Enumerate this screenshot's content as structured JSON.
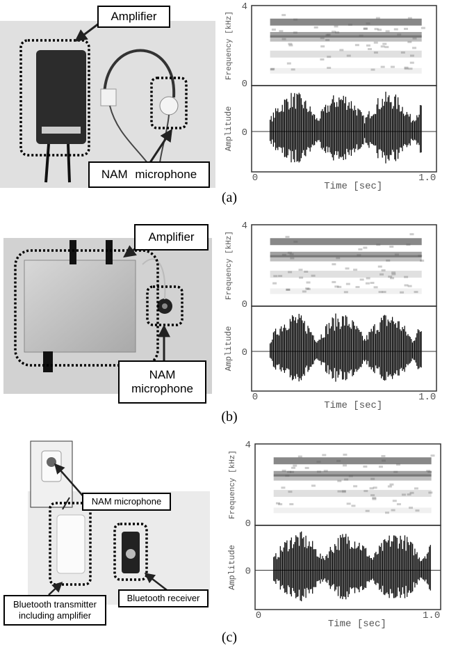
{
  "panels": [
    {
      "label": "(a)",
      "annotations": [
        "Amplifier",
        "NAM microphone"
      ],
      "plot": {
        "y_label_top": "Frequency [kHz]",
        "y_ticks_top": [
          "4",
          "0"
        ],
        "y_label_bottom": "Amplitude",
        "y_ticks_bottom": [
          "0"
        ],
        "x_ticks": [
          "0",
          "1.0"
        ],
        "x_label": "Time [sec]"
      }
    },
    {
      "label": "(b)",
      "annotations": [
        "Amplifier",
        "NAM microphone"
      ],
      "plot": {
        "y_label_top": "Frequency [kHz]",
        "y_ticks_top": [
          "4",
          "0"
        ],
        "y_label_bottom": "Amplitude",
        "y_ticks_bottom": [
          "0"
        ],
        "x_ticks": [
          "0",
          "1.0"
        ],
        "x_label": "Time [sec]"
      }
    },
    {
      "label": "(c)",
      "annotations": [
        "NAM microphone",
        "Bluetooth transmitter including amplifier",
        "Bluetooth receiver"
      ],
      "plot": {
        "y_label_top": "Frequency [kHz]",
        "y_ticks_top": [
          "4",
          "0"
        ],
        "y_label_bottom": "Amplitude",
        "y_ticks_bottom": [
          "0"
        ],
        "x_ticks": [
          "0",
          "1.0"
        ],
        "x_label": "Time [sec]"
      }
    }
  ]
}
